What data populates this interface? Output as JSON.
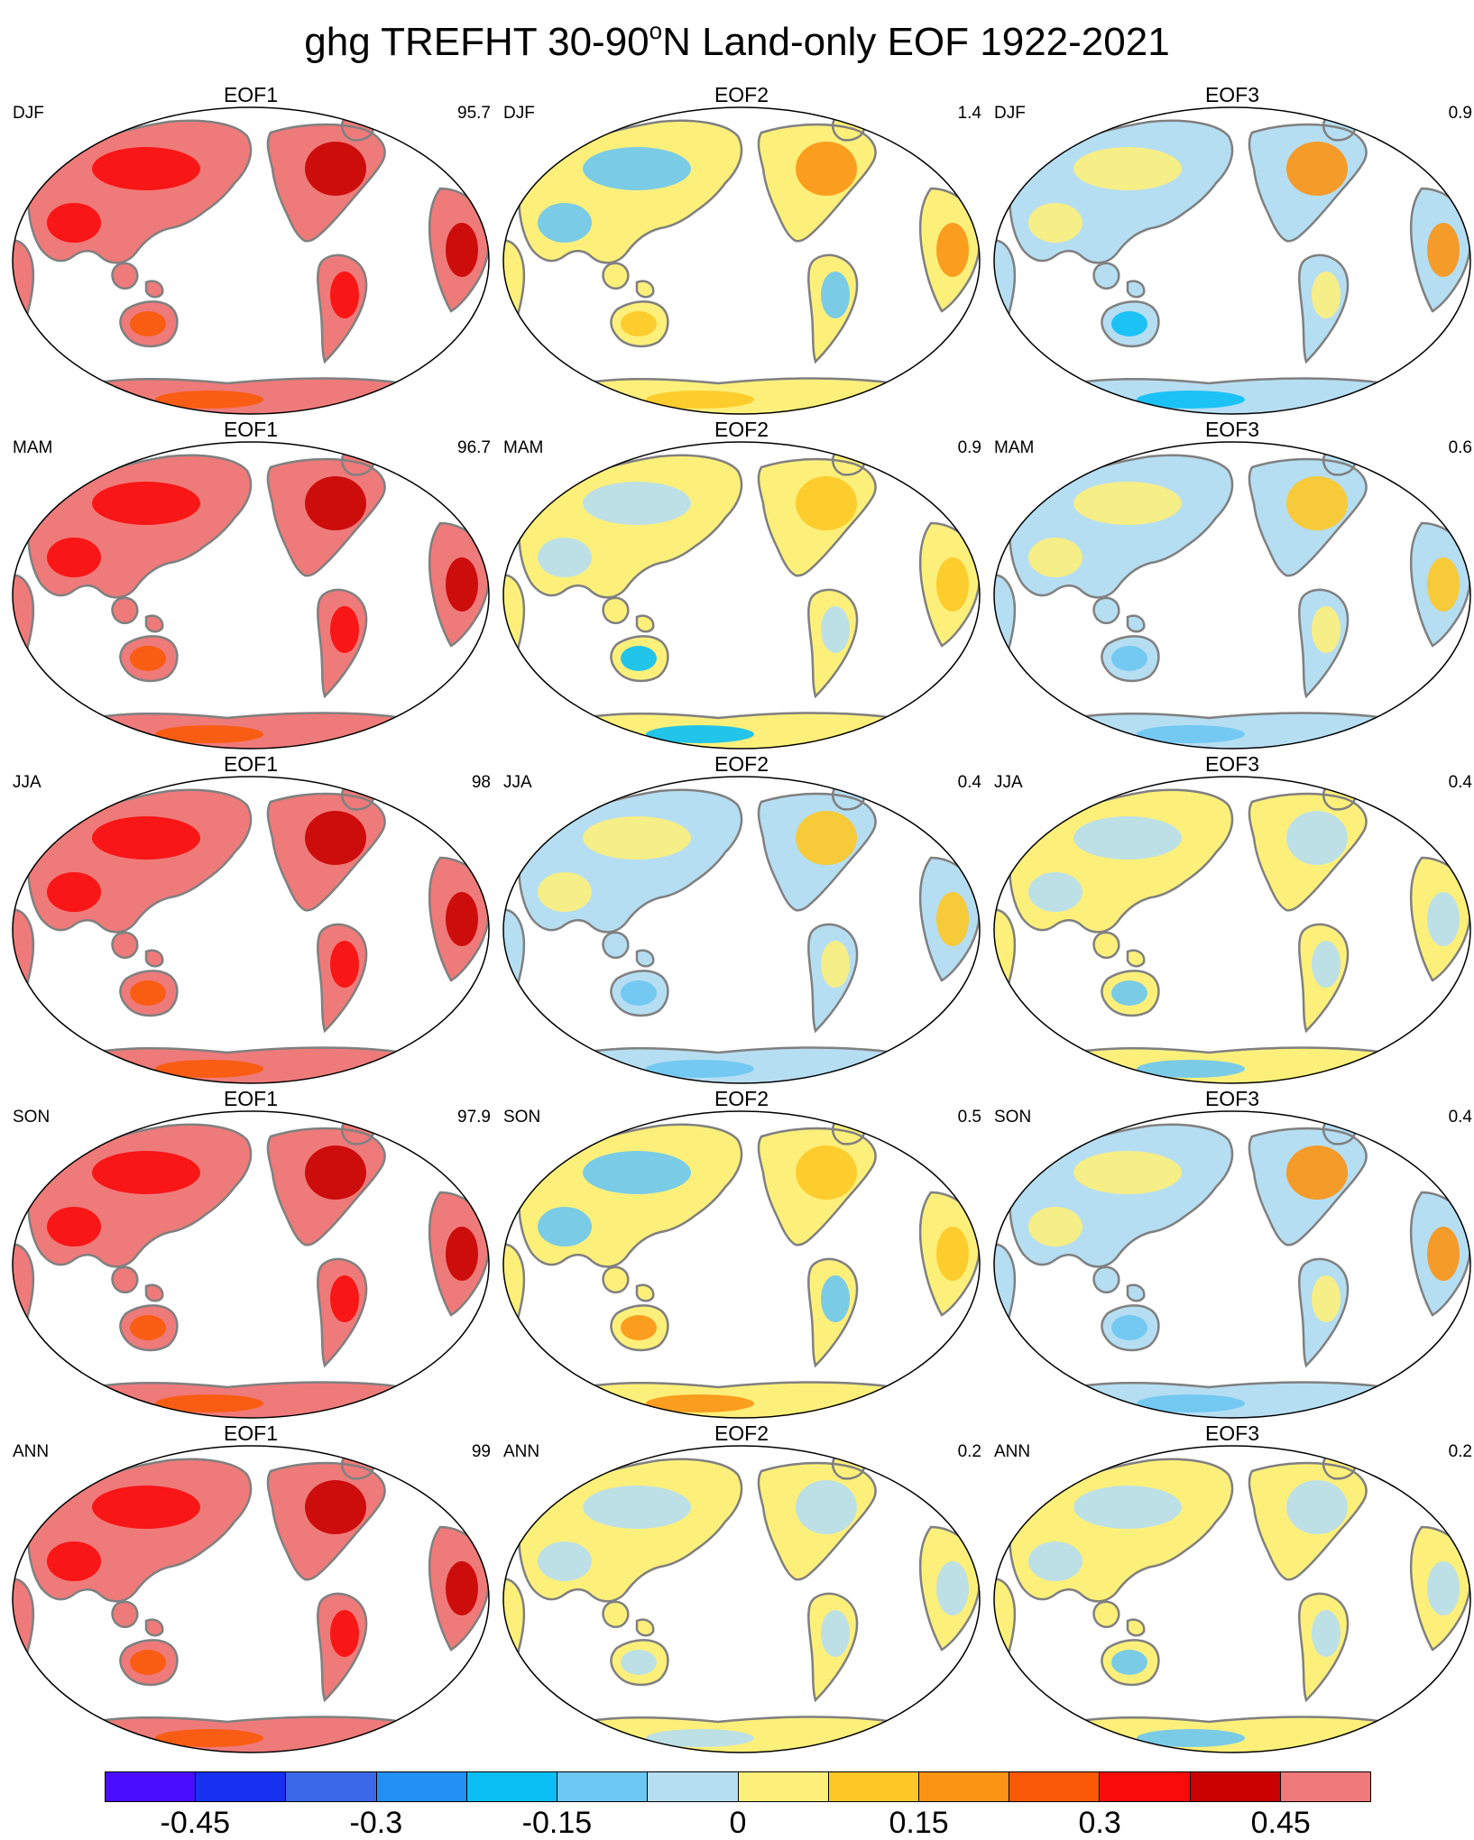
{
  "title_main": "ghg TREFHT 30-90",
  "title_sup": "o",
  "title_rest": "N Land-only EOF 1922-2021",
  "colors": {
    "boxes": [
      "#4a0dff",
      "#1631f0",
      "#3b68e8",
      "#2390f5",
      "#0bbff5",
      "#6cc7f2",
      "#b6def2",
      "#fdf07a",
      "#fdc825",
      "#fb9314",
      "#fa5a08",
      "#f80b0b",
      "#c90000",
      "#ef7a7a"
    ],
    "land_outline": "#808080",
    "ocean": "#ffffff"
  },
  "colorbar_labels": [
    "-0.45",
    "-0.3",
    "-0.15",
    "0",
    "0.15",
    "0.3",
    "0.45"
  ],
  "panels": [
    {
      "eof": "EOF1",
      "season": "DJF",
      "pct": "95.7"
    },
    {
      "eof": "EOF2",
      "season": "DJF",
      "pct": "1.4"
    },
    {
      "eof": "EOF3",
      "season": "DJF",
      "pct": "0.9"
    },
    {
      "eof": "EOF1",
      "season": "MAM",
      "pct": "96.7"
    },
    {
      "eof": "EOF2",
      "season": "MAM",
      "pct": "0.9"
    },
    {
      "eof": "EOF3",
      "season": "MAM",
      "pct": "0.6"
    },
    {
      "eof": "EOF1",
      "season": "JJA",
      "pct": "98"
    },
    {
      "eof": "EOF2",
      "season": "JJA",
      "pct": "0.4"
    },
    {
      "eof": "EOF3",
      "season": "JJA",
      "pct": "0.4"
    },
    {
      "eof": "EOF1",
      "season": "SON",
      "pct": "97.9"
    },
    {
      "eof": "EOF2",
      "season": "SON",
      "pct": "0.5"
    },
    {
      "eof": "EOF3",
      "season": "SON",
      "pct": "0.4"
    },
    {
      "eof": "EOF1",
      "season": "ANN",
      "pct": "99"
    },
    {
      "eof": "EOF2",
      "season": "ANN",
      "pct": "0.2"
    },
    {
      "eof": "EOF3",
      "season": "ANN",
      "pct": "0.2"
    }
  ]
}
